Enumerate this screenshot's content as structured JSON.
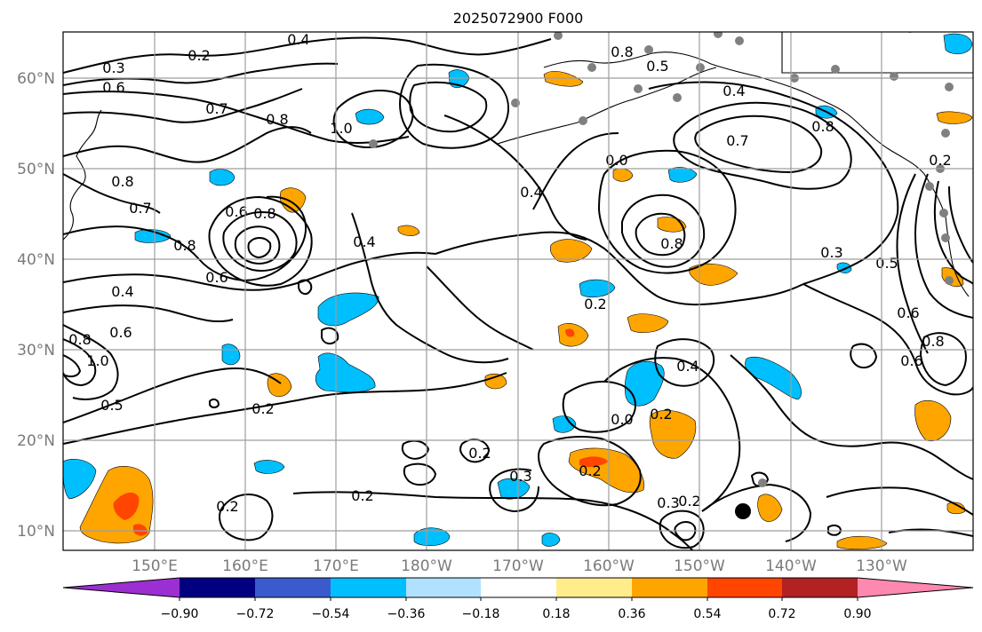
{
  "title": "2025072900 F000",
  "lat_labels": [
    "60°N",
    "50°N",
    "40°N",
    "30°N",
    "20°N",
    "10°N"
  ],
  "lon_labels": [
    "150°E",
    "160°E",
    "170°E",
    "180°W",
    "170°W",
    "160°W",
    "150°W",
    "140°W",
    "130°W"
  ],
  "colorbar": {
    "colors": [
      "#9b2fd1",
      "#000080",
      "#3a5bcc",
      "#00bfff",
      "#b0e2ff",
      "#ffffff",
      "#ffec8b",
      "#ffa500",
      "#ff4500",
      "#b22222",
      "#ff88b0"
    ],
    "tick_labels": [
      "−0.90",
      "−0.72",
      "−0.54",
      "−0.36",
      "−0.18",
      "0.18",
      "0.36",
      "0.54",
      "0.72",
      "0.90"
    ]
  },
  "contour_labels": [
    "0.4",
    "0.2",
    "0.3",
    "0.6",
    "0.7",
    "0.8",
    "1.0",
    "0.8",
    "0.5",
    "0.4",
    "0.7",
    "0.8",
    "0.2",
    "0.8",
    "0.7",
    "0.6",
    "0.8",
    "0.8",
    "0.6",
    "0.4",
    "0.4",
    "0.0",
    "0.8",
    "0.3",
    "0.5",
    "0.6",
    "0.8",
    "0.4",
    "0.6",
    "0.8",
    "1.0",
    "0.5",
    "0.2",
    "0.2",
    "0.2",
    "0.3",
    "0.2",
    "0.2",
    "0.3",
    "0.2",
    "0.4",
    "0.0",
    "0.2",
    "0.6",
    "0.2"
  ],
  "colors": {
    "grid": "#9e9e9e",
    "contour": "#000000",
    "station": "#808080",
    "marker": "#000000"
  }
}
